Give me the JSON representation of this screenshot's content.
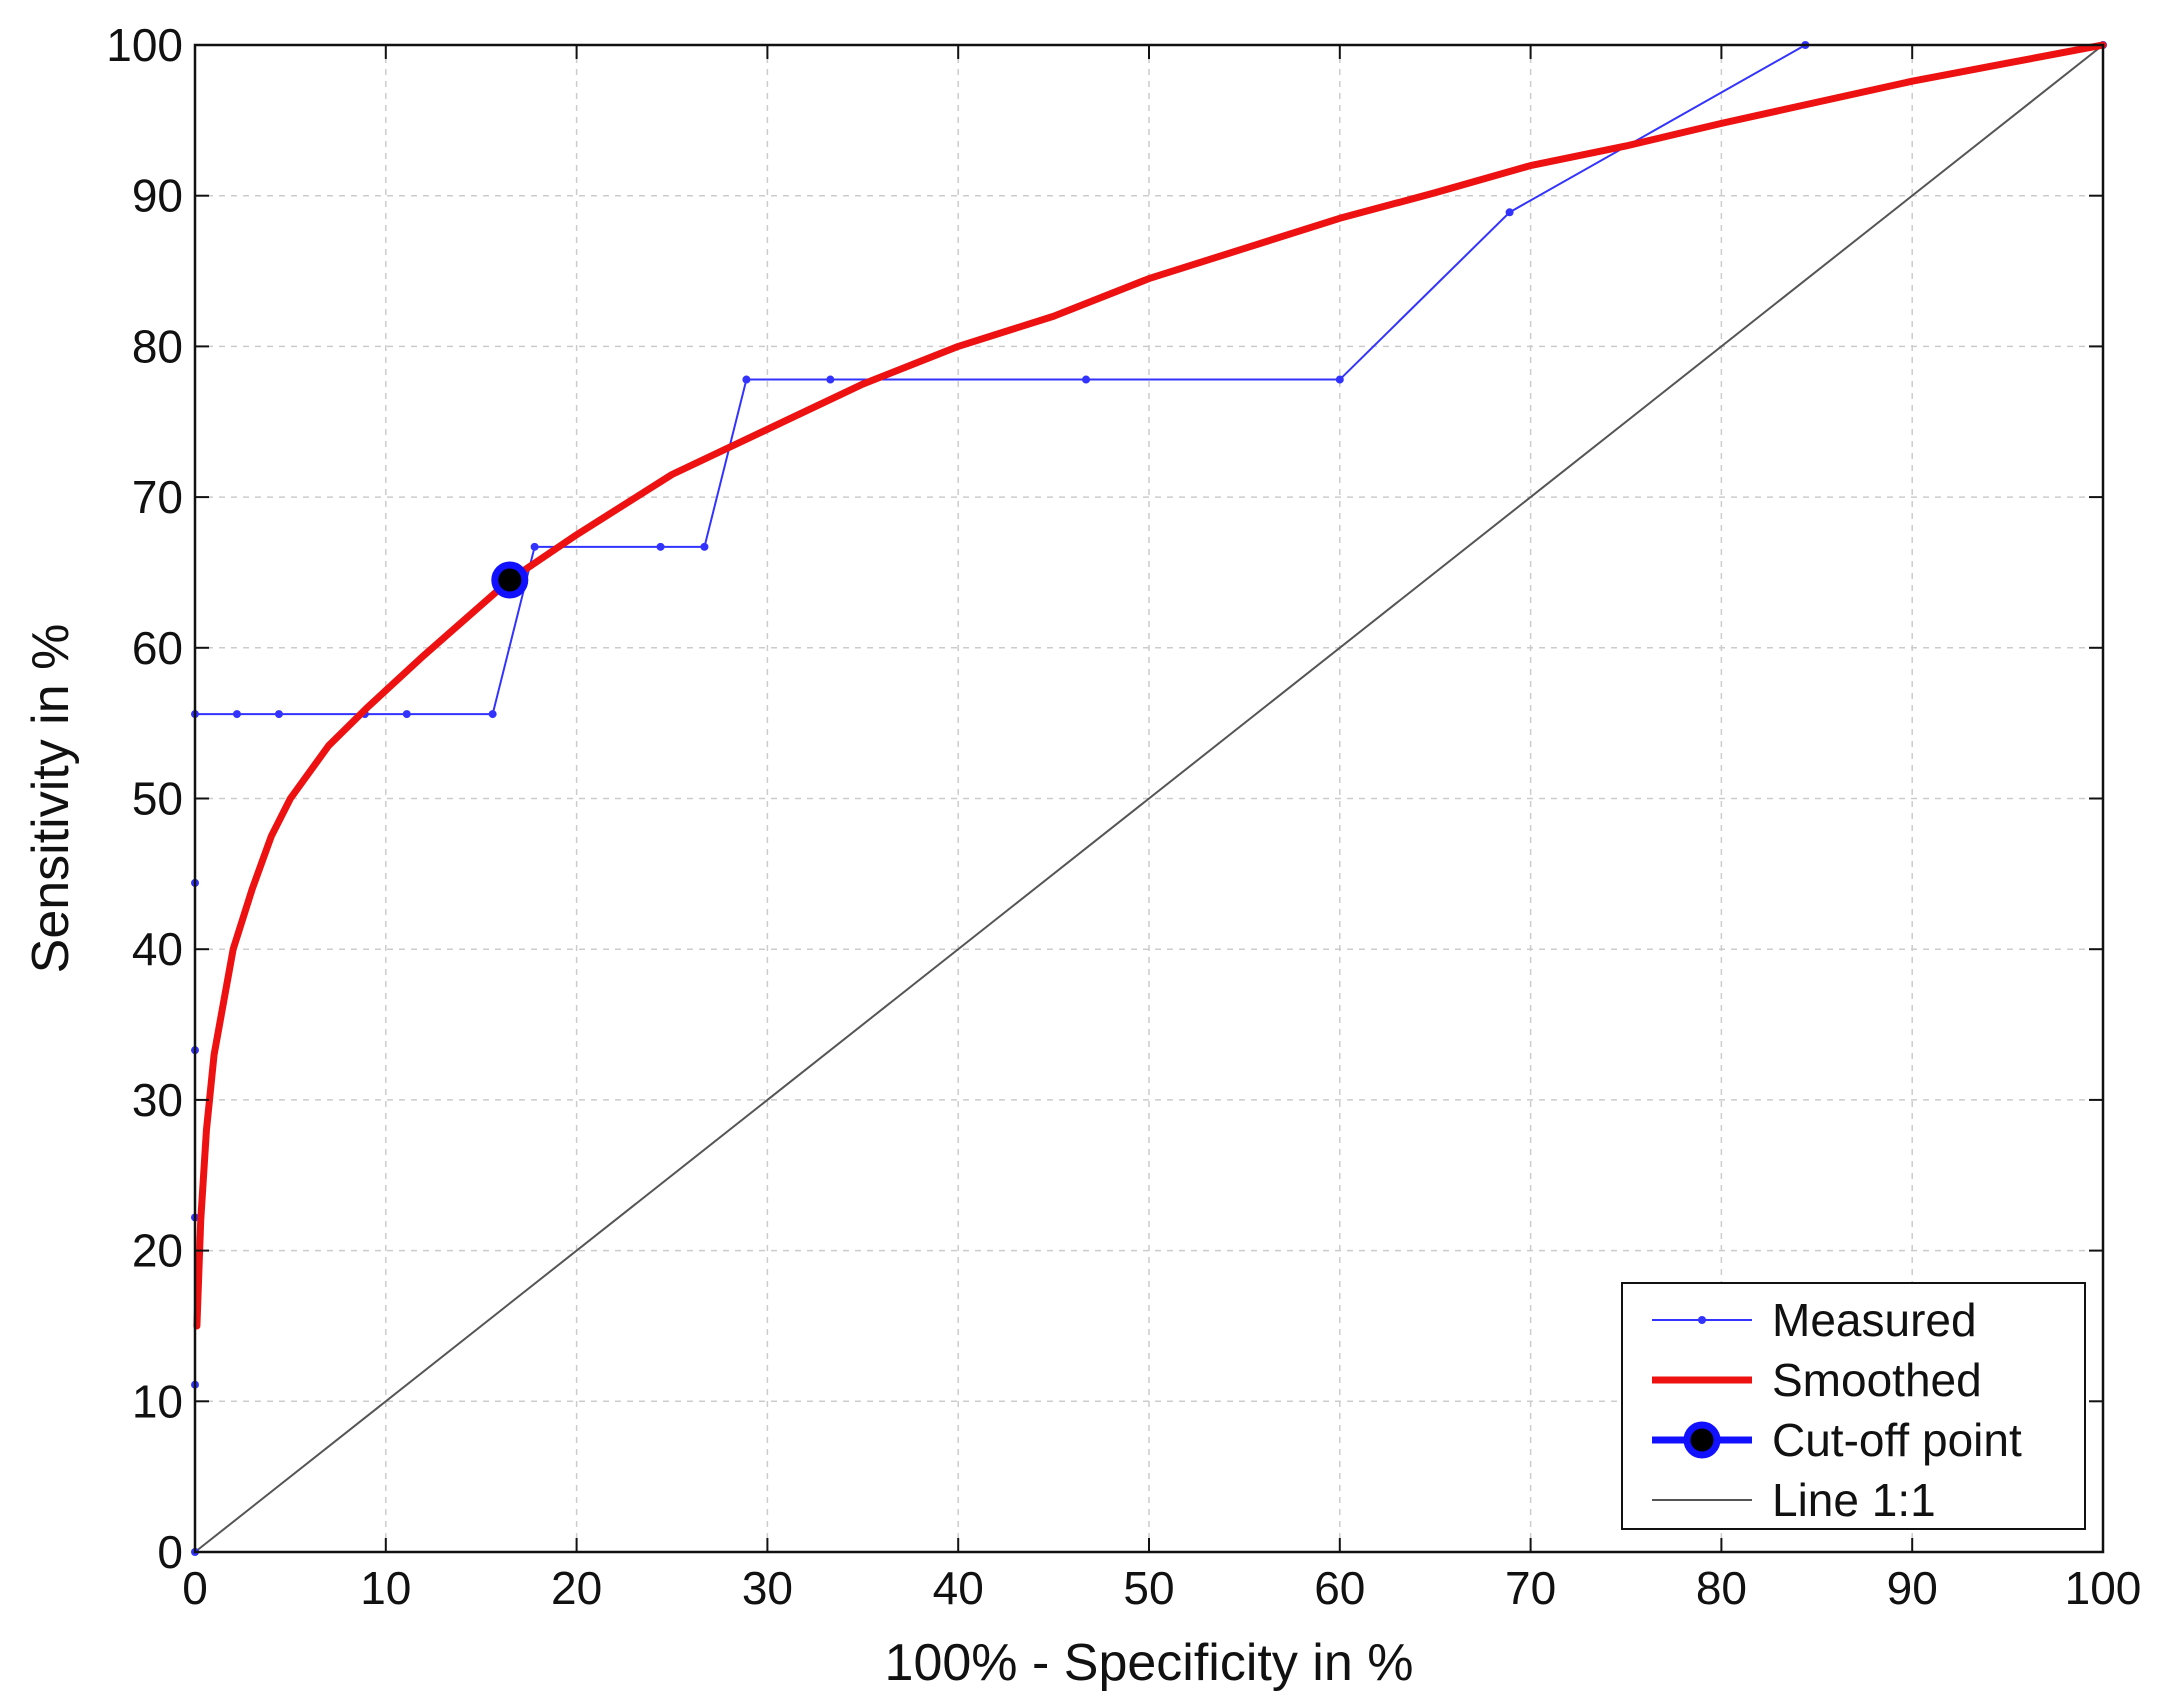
{
  "chart_data": {
    "type": "line",
    "title": "",
    "xlabel": "100% - Specificity in %",
    "ylabel": "Sensitivity in %",
    "xlim": [
      0,
      100
    ],
    "ylim": [
      0,
      100
    ],
    "xticks": [
      0,
      10,
      20,
      30,
      40,
      50,
      60,
      70,
      80,
      90,
      100
    ],
    "yticks": [
      0,
      10,
      20,
      30,
      40,
      50,
      60,
      70,
      80,
      90,
      100
    ],
    "grid": true,
    "legend_position": "bottom-right",
    "colors": {
      "measured": "#3333ff",
      "smoothed": "#ee1111",
      "cutoff_fill": "#000000",
      "cutoff_edge": "#1111ff",
      "line11": "#555555",
      "grid": "#cccccc"
    },
    "series": [
      {
        "name": "Measured",
        "x": [
          0,
          0,
          0,
          0,
          0,
          0,
          2.2,
          4.4,
          8.9,
          11.1,
          15.6,
          17.8,
          24.4,
          26.7,
          28.9,
          33.3,
          46.7,
          60.0,
          68.9,
          84.4,
          100
        ],
        "y": [
          0,
          11.1,
          22.2,
          33.3,
          44.4,
          55.6,
          55.6,
          55.6,
          55.6,
          55.6,
          55.6,
          66.7,
          66.7,
          66.7,
          77.8,
          77.8,
          77.8,
          77.8,
          88.9,
          100,
          100
        ]
      },
      {
        "name": "Smoothed",
        "x": [
          0.1,
          0.3,
          0.6,
          1,
          2,
          3,
          4,
          5,
          7,
          9,
          12,
          16.5,
          20,
          25,
          30,
          35,
          40,
          45,
          50,
          55,
          60,
          65,
          70,
          75,
          80,
          85,
          90,
          95,
          100
        ],
        "y": [
          15,
          22,
          28,
          33,
          40,
          44,
          47.5,
          50,
          53.5,
          56,
          59.5,
          64.5,
          67.5,
          71.5,
          74.5,
          77.5,
          80,
          82,
          84.5,
          86.5,
          88.5,
          90.2,
          92,
          93.3,
          94.8,
          96.2,
          97.6,
          98.8,
          100
        ]
      },
      {
        "name": "Cut-off point",
        "x": [
          16.5
        ],
        "y": [
          64.5
        ]
      },
      {
        "name": "Line 1:1",
        "x": [
          0,
          100
        ],
        "y": [
          0,
          100
        ]
      }
    ]
  }
}
